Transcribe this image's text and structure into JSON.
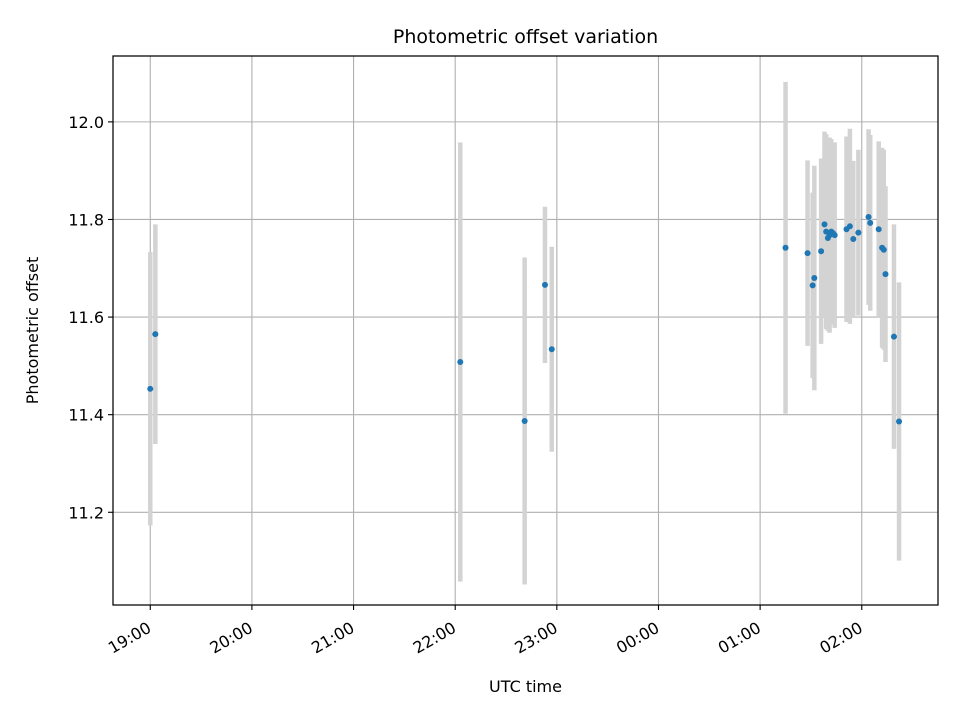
{
  "chart_data": {
    "type": "scatter",
    "title": "Photometric offset variation",
    "xlabel": "UTC time",
    "ylabel": "Photometric offset",
    "x_unit": "UTC time (HH:MM)",
    "x_ticks": [
      "19:00",
      "20:00",
      "21:00",
      "22:00",
      "23:00",
      "00:00",
      "01:00",
      "02:00"
    ],
    "y_ticks": [
      "11.2",
      "11.4",
      "11.6",
      "11.8",
      "12.0"
    ],
    "xlim": [
      "18:38",
      "02:45 (next day)"
    ],
    "ylim": [
      11.01,
      12.135
    ],
    "grid": true,
    "marker_color": "#1f77b4",
    "errorbar_color": "#d3d3d3",
    "points": [
      {
        "x": "19:00",
        "y": 11.453,
        "err": 0.28
      },
      {
        "x": "19:03",
        "y": 11.565,
        "err": 0.225
      },
      {
        "x": "22:03",
        "y": 11.508,
        "err": 0.45
      },
      {
        "x": "22:41",
        "y": 11.387,
        "err": 0.335
      },
      {
        "x": "22:53",
        "y": 11.666,
        "err": 0.16
      },
      {
        "x": "22:57",
        "y": 11.534,
        "err": 0.21
      },
      {
        "x": "01:15",
        "y": 11.742,
        "err": 0.34
      },
      {
        "x": "01:28",
        "y": 11.731,
        "err": 0.19
      },
      {
        "x": "01:31",
        "y": 11.665,
        "err": 0.19
      },
      {
        "x": "01:32",
        "y": 11.68,
        "err": 0.23
      },
      {
        "x": "01:36",
        "y": 11.735,
        "err": 0.19
      },
      {
        "x": "01:38",
        "y": 11.79,
        "err": 0.19
      },
      {
        "x": "01:39",
        "y": 11.775,
        "err": 0.2
      },
      {
        "x": "01:40",
        "y": 11.762,
        "err": 0.19
      },
      {
        "x": "01:41",
        "y": 11.768,
        "err": 0.2
      },
      {
        "x": "01:42",
        "y": 11.775,
        "err": 0.19
      },
      {
        "x": "01:43",
        "y": 11.772,
        "err": 0.18
      },
      {
        "x": "01:44",
        "y": 11.768,
        "err": 0.19
      },
      {
        "x": "01:51",
        "y": 11.78,
        "err": 0.19
      },
      {
        "x": "01:53",
        "y": 11.786,
        "err": 0.2
      },
      {
        "x": "01:55",
        "y": 11.76,
        "err": 0.16
      },
      {
        "x": "01:58",
        "y": 11.773,
        "err": 0.17
      },
      {
        "x": "02:04",
        "y": 11.805,
        "err": 0.18
      },
      {
        "x": "02:05",
        "y": 11.793,
        "err": 0.18
      },
      {
        "x": "02:10",
        "y": 11.78,
        "err": 0.18
      },
      {
        "x": "02:12",
        "y": 11.742,
        "err": 0.205
      },
      {
        "x": "02:13",
        "y": 11.738,
        "err": 0.205
      },
      {
        "x": "02:14",
        "y": 11.688,
        "err": 0.18
      },
      {
        "x": "02:19",
        "y": 11.56,
        "err": 0.23
      },
      {
        "x": "02:22",
        "y": 11.386,
        "err": 0.285
      }
    ]
  }
}
